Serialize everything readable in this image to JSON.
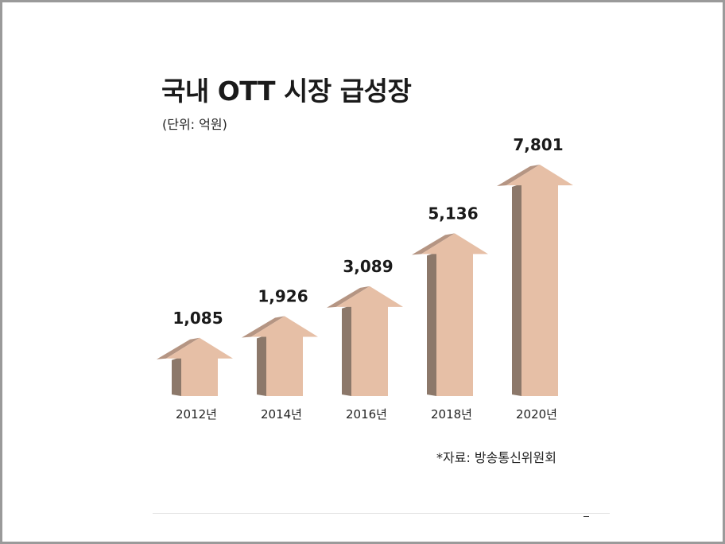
{
  "title": "국내 OTT 시장 급성장",
  "unit": "(단위: 억원)",
  "source": "*자료: 방송통신위원회",
  "colors": {
    "arrow_front": "#e6bfa6",
    "arrow_side": "#8c786a",
    "arrow_top": "#b59583"
  },
  "chart_data": {
    "type": "bar",
    "categories": [
      "2012년",
      "2014년",
      "2016년",
      "2018년",
      "2020년"
    ],
    "values": [
      1085,
      1926,
      3089,
      5136,
      7801
    ],
    "value_labels": [
      "1,085",
      "1,926",
      "3,089",
      "5,136",
      "7,801"
    ],
    "ylim": [
      0,
      7801
    ],
    "grid": false
  }
}
